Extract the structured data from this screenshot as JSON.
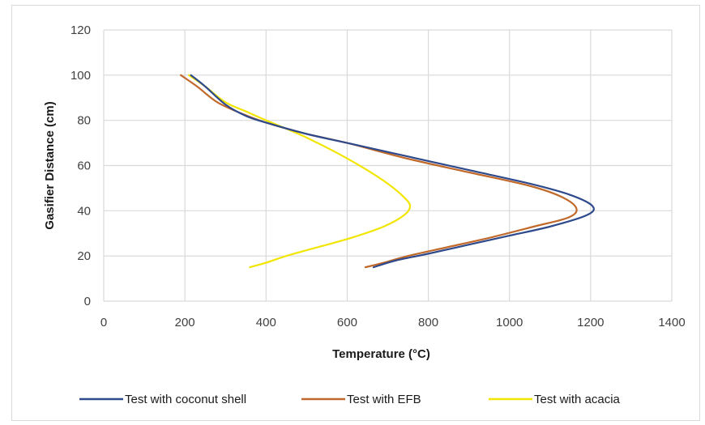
{
  "chart_data": {
    "type": "line",
    "title": "",
    "xlabel": "Temperature (°C)",
    "ylabel": "Gasifier Distance (cm)",
    "xlim": [
      0,
      1400
    ],
    "ylim": [
      0,
      120
    ],
    "xticks": [
      0,
      200,
      400,
      600,
      800,
      1000,
      1200,
      1400
    ],
    "yticks": [
      0,
      20,
      40,
      60,
      80,
      100,
      120
    ],
    "grid": true,
    "legend_position": "bottom",
    "series": [
      {
        "name": "Test with coconut shell",
        "color": "#2e4a8c",
        "points": [
          [
            215,
            100
          ],
          [
            250,
            95
          ],
          [
            300,
            87
          ],
          [
            350,
            82
          ],
          [
            400,
            79
          ],
          [
            500,
            74
          ],
          [
            600,
            70
          ],
          [
            750,
            64
          ],
          [
            900,
            58
          ],
          [
            1050,
            52
          ],
          [
            1150,
            47
          ],
          [
            1205,
            42
          ],
          [
            1190,
            38
          ],
          [
            1100,
            33
          ],
          [
            1000,
            29
          ],
          [
            900,
            25
          ],
          [
            800,
            21
          ],
          [
            720,
            18
          ],
          [
            665,
            15
          ]
        ]
      },
      {
        "name": "Test with EFB",
        "color": "#c0692b",
        "points": [
          [
            190,
            100
          ],
          [
            230,
            95
          ],
          [
            280,
            88
          ],
          [
            340,
            83
          ],
          [
            400,
            79
          ],
          [
            500,
            74
          ],
          [
            600,
            70
          ],
          [
            750,
            63
          ],
          [
            900,
            57
          ],
          [
            1050,
            51
          ],
          [
            1130,
            46
          ],
          [
            1165,
            41
          ],
          [
            1145,
            37
          ],
          [
            1060,
            33
          ],
          [
            950,
            28
          ],
          [
            850,
            24
          ],
          [
            750,
            20
          ],
          [
            690,
            17
          ],
          [
            645,
            15
          ]
        ]
      },
      {
        "name": "Test with acacia",
        "color": "#f2e500",
        "points": [
          [
            210,
            100
          ],
          [
            250,
            95
          ],
          [
            300,
            88
          ],
          [
            350,
            84
          ],
          [
            400,
            80
          ],
          [
            480,
            74
          ],
          [
            560,
            67
          ],
          [
            640,
            59
          ],
          [
            700,
            52
          ],
          [
            740,
            46
          ],
          [
            755,
            42
          ],
          [
            740,
            38
          ],
          [
            690,
            33
          ],
          [
            610,
            28
          ],
          [
            530,
            24
          ],
          [
            450,
            20
          ],
          [
            400,
            17
          ],
          [
            360,
            15
          ]
        ]
      }
    ]
  }
}
